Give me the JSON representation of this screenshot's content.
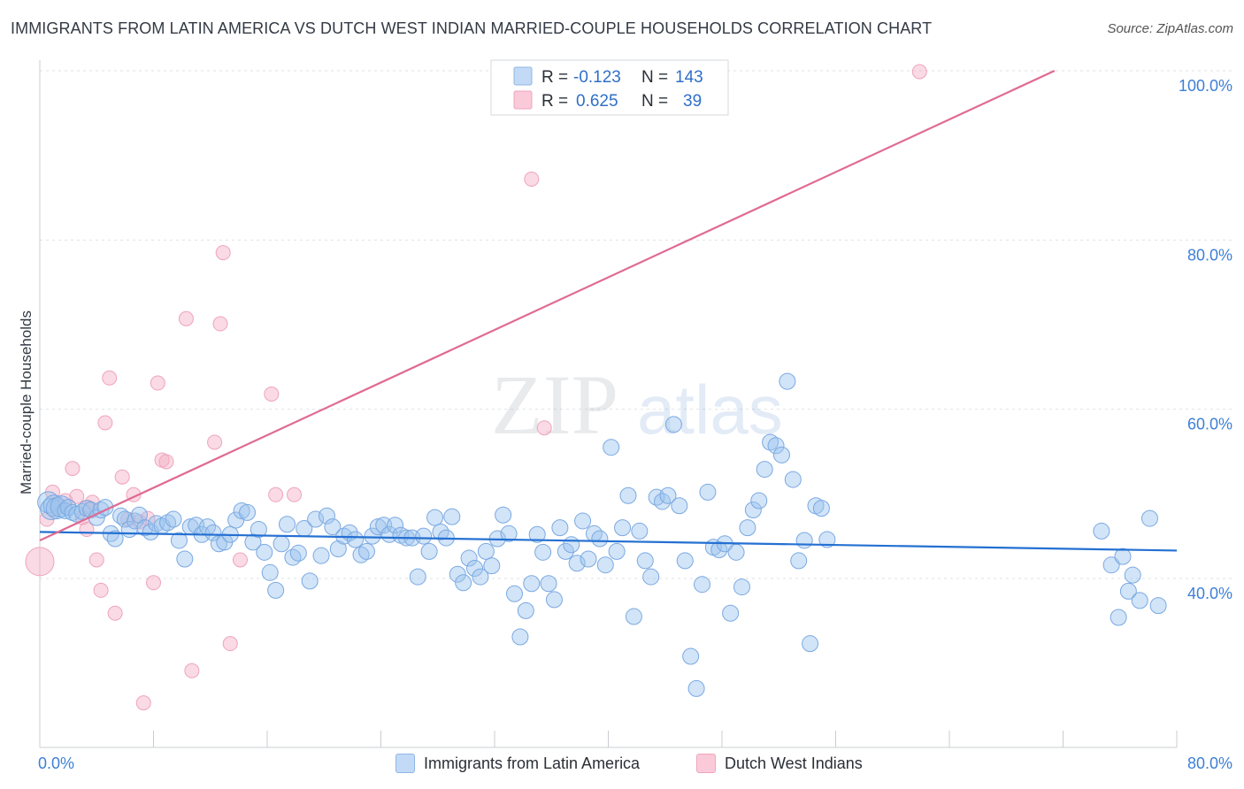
{
  "header": {
    "title": "IMMIGRANTS FROM LATIN AMERICA VS DUTCH WEST INDIAN MARRIED-COUPLE HOUSEHOLDS CORRELATION CHART",
    "source": "Source: ZipAtlas.com"
  },
  "watermark": {
    "zip": "ZIP",
    "atlas": "atlas"
  },
  "legend_box": {
    "r_label": "R =",
    "n_label": "N =",
    "rows": [
      {
        "r": "-0.123",
        "n": "143"
      },
      {
        "r": "0.625",
        "n": "39"
      }
    ]
  },
  "bottom_legend": {
    "blue": "Immigrants from Latin America",
    "pink": "Dutch West Indians"
  },
  "chart_data": {
    "type": "scatter",
    "title": "IMMIGRANTS FROM LATIN AMERICA VS DUTCH WEST INDIAN MARRIED-COUPLE HOUSEHOLDS CORRELATION CHART",
    "ylabel": "Married-couple Households",
    "xlabel": "",
    "xlim": [
      0,
      80
    ],
    "ylim": [
      20,
      100
    ],
    "x_tick_labels": [
      "0.0%",
      "80.0%"
    ],
    "y_ticks": [
      {
        "value": 40,
        "label": "40.0%"
      },
      {
        "value": 60,
        "label": "60.0%"
      },
      {
        "value": 80,
        "label": "80.0%"
      },
      {
        "value": 100,
        "label": "100.0%"
      }
    ],
    "grid": true,
    "colors": {
      "blue": "#9cc3ee",
      "blue_line": "#2470d2",
      "pink": "#f4adc4",
      "pink_line": "#e06a94"
    },
    "series": [
      {
        "name": "Immigrants from Latin America",
        "r": -0.123,
        "n": 143,
        "trend": {
          "x": [
            0,
            80
          ],
          "y": [
            45.5,
            43.3
          ]
        },
        "points": [
          [
            0.6,
            49.0
          ],
          [
            0.8,
            48.2
          ],
          [
            1.0,
            48.6
          ],
          [
            1.2,
            48.3
          ],
          [
            1.5,
            48.5
          ],
          [
            1.8,
            48.0
          ],
          [
            2.0,
            48.4
          ],
          [
            2.3,
            47.8
          ],
          [
            2.6,
            47.6
          ],
          [
            3.0,
            47.9
          ],
          [
            3.3,
            48.3
          ],
          [
            3.6,
            48.1
          ],
          [
            4.0,
            47.2
          ],
          [
            4.3,
            48.1
          ],
          [
            4.6,
            48.4
          ],
          [
            5.0,
            45.3
          ],
          [
            5.3,
            44.7
          ],
          [
            5.7,
            47.4
          ],
          [
            6.0,
            47.0
          ],
          [
            6.3,
            45.8
          ],
          [
            6.7,
            46.8
          ],
          [
            7.0,
            47.5
          ],
          [
            7.4,
            46.0
          ],
          [
            7.8,
            45.5
          ],
          [
            8.2,
            46.5
          ],
          [
            8.6,
            46.2
          ],
          [
            9.0,
            46.6
          ],
          [
            9.4,
            47.0
          ],
          [
            9.8,
            44.5
          ],
          [
            10.2,
            42.3
          ],
          [
            10.6,
            46.1
          ],
          [
            11.0,
            46.3
          ],
          [
            11.4,
            45.2
          ],
          [
            11.8,
            46.1
          ],
          [
            12.2,
            45.4
          ],
          [
            12.6,
            44.1
          ],
          [
            13.0,
            44.3
          ],
          [
            13.4,
            45.2
          ],
          [
            13.8,
            46.9
          ],
          [
            14.2,
            48.0
          ],
          [
            14.6,
            47.8
          ],
          [
            15.0,
            44.3
          ],
          [
            15.4,
            45.8
          ],
          [
            15.8,
            43.1
          ],
          [
            16.2,
            40.7
          ],
          [
            16.6,
            38.6
          ],
          [
            17.0,
            44.1
          ],
          [
            17.4,
            46.4
          ],
          [
            17.8,
            42.5
          ],
          [
            18.2,
            43.0
          ],
          [
            18.6,
            45.9
          ],
          [
            19.0,
            39.7
          ],
          [
            19.4,
            47.0
          ],
          [
            19.8,
            42.7
          ],
          [
            20.2,
            47.4
          ],
          [
            20.6,
            46.1
          ],
          [
            21.0,
            43.5
          ],
          [
            21.4,
            45.0
          ],
          [
            21.8,
            45.4
          ],
          [
            22.2,
            44.6
          ],
          [
            22.6,
            42.8
          ],
          [
            23.0,
            43.2
          ],
          [
            23.4,
            45.0
          ],
          [
            23.8,
            46.1
          ],
          [
            24.2,
            46.3
          ],
          [
            24.6,
            45.2
          ],
          [
            25.0,
            46.3
          ],
          [
            25.4,
            45.1
          ],
          [
            25.8,
            44.8
          ],
          [
            26.2,
            44.8
          ],
          [
            26.6,
            40.2
          ],
          [
            27.0,
            45.0
          ],
          [
            27.4,
            43.2
          ],
          [
            27.8,
            47.2
          ],
          [
            28.2,
            45.5
          ],
          [
            28.6,
            44.8
          ],
          [
            29.0,
            47.3
          ],
          [
            29.4,
            40.5
          ],
          [
            29.8,
            39.5
          ],
          [
            30.2,
            42.4
          ],
          [
            30.6,
            41.2
          ],
          [
            31.0,
            40.2
          ],
          [
            31.4,
            43.2
          ],
          [
            31.8,
            41.5
          ],
          [
            32.2,
            44.7
          ],
          [
            32.6,
            47.5
          ],
          [
            33.0,
            45.3
          ],
          [
            33.4,
            38.2
          ],
          [
            33.8,
            33.1
          ],
          [
            34.2,
            36.2
          ],
          [
            34.6,
            39.4
          ],
          [
            35.0,
            45.2
          ],
          [
            35.4,
            43.1
          ],
          [
            35.8,
            39.4
          ],
          [
            36.2,
            37.5
          ],
          [
            36.6,
            46.0
          ],
          [
            37.0,
            43.2
          ],
          [
            37.4,
            44.0
          ],
          [
            37.8,
            41.8
          ],
          [
            38.2,
            46.8
          ],
          [
            38.6,
            42.3
          ],
          [
            39.0,
            45.3
          ],
          [
            39.4,
            44.7
          ],
          [
            39.8,
            41.6
          ],
          [
            40.2,
            55.5
          ],
          [
            40.6,
            43.2
          ],
          [
            41.0,
            46.0
          ],
          [
            41.4,
            49.8
          ],
          [
            41.8,
            35.5
          ],
          [
            42.2,
            45.6
          ],
          [
            42.6,
            42.1
          ],
          [
            43.0,
            40.2
          ],
          [
            43.4,
            49.6
          ],
          [
            43.8,
            49.1
          ],
          [
            44.2,
            49.8
          ],
          [
            44.6,
            58.2
          ],
          [
            45.0,
            48.6
          ],
          [
            45.4,
            42.1
          ],
          [
            45.8,
            30.8
          ],
          [
            46.2,
            27.0
          ],
          [
            46.6,
            39.3
          ],
          [
            47.0,
            50.2
          ],
          [
            47.4,
            43.7
          ],
          [
            47.8,
            43.4
          ],
          [
            48.2,
            44.1
          ],
          [
            48.6,
            35.9
          ],
          [
            49.0,
            43.1
          ],
          [
            49.4,
            39.0
          ],
          [
            49.8,
            46.0
          ],
          [
            50.2,
            48.1
          ],
          [
            50.6,
            49.2
          ],
          [
            51.0,
            52.9
          ],
          [
            51.4,
            56.1
          ],
          [
            51.8,
            55.7
          ],
          [
            52.2,
            54.6
          ],
          [
            52.6,
            63.3
          ],
          [
            53.0,
            51.7
          ],
          [
            53.4,
            42.1
          ],
          [
            53.8,
            44.5
          ],
          [
            54.2,
            32.3
          ],
          [
            54.6,
            48.6
          ],
          [
            55.0,
            48.3
          ],
          [
            55.4,
            44.6
          ]
        ],
        "extra_points": [
          [
            74.7,
            45.6
          ],
          [
            75.4,
            41.6
          ],
          [
            75.9,
            35.4
          ],
          [
            76.2,
            42.6
          ],
          [
            76.6,
            38.5
          ],
          [
            76.9,
            40.4
          ],
          [
            78.1,
            47.1
          ],
          [
            78.7,
            36.8
          ],
          [
            77.4,
            37.4
          ]
        ]
      },
      {
        "name": "Dutch West Indians",
        "r": 0.625,
        "n": 39,
        "trend": {
          "x": [
            0,
            71.4
          ],
          "y": [
            44.5,
            100
          ]
        },
        "points": [
          [
            0.0,
            42.0
          ],
          [
            0.5,
            47.0
          ],
          [
            0.9,
            50.2
          ],
          [
            1.3,
            48.5
          ],
          [
            1.8,
            49.2
          ],
          [
            2.3,
            53.0
          ],
          [
            2.6,
            49.7
          ],
          [
            3.0,
            47.2
          ],
          [
            3.3,
            45.8
          ],
          [
            3.7,
            49.0
          ],
          [
            4.0,
            42.2
          ],
          [
            4.3,
            38.6
          ],
          [
            4.6,
            58.4
          ],
          [
            4.9,
            63.7
          ],
          [
            5.3,
            35.9
          ],
          [
            5.8,
            52.0
          ],
          [
            6.2,
            47.0
          ],
          [
            6.6,
            49.9
          ],
          [
            7.0,
            46.7
          ],
          [
            7.3,
            25.3
          ],
          [
            7.6,
            47.1
          ],
          [
            8.0,
            39.5
          ],
          [
            8.3,
            63.1
          ],
          [
            8.6,
            54.0
          ],
          [
            8.9,
            53.8
          ],
          [
            10.3,
            70.7
          ],
          [
            10.7,
            29.1
          ],
          [
            12.3,
            56.1
          ],
          [
            12.7,
            70.1
          ],
          [
            12.9,
            78.5
          ],
          [
            13.4,
            32.3
          ],
          [
            14.1,
            42.2
          ],
          [
            16.3,
            61.8
          ],
          [
            16.6,
            49.9
          ],
          [
            17.9,
            49.9
          ],
          [
            34.6,
            87.2
          ],
          [
            35.5,
            57.8
          ],
          [
            61.9,
            99.9
          ],
          [
            3.4,
            48.4
          ]
        ]
      }
    ]
  }
}
